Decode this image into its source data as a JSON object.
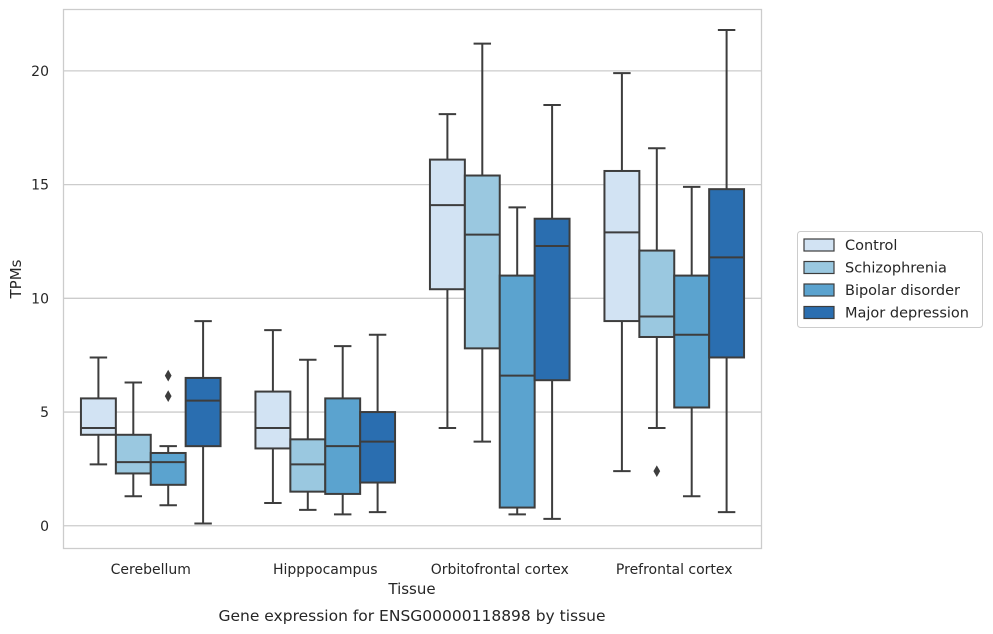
{
  "chart_data": {
    "type": "box",
    "caption": "Gene expression for ENSG00000118898 by tissue",
    "xlabel": "Tissue",
    "ylabel": "TPMs",
    "ylim": [
      -1,
      22.7
    ],
    "yticks": [
      0,
      5,
      10,
      15,
      20
    ],
    "grid": "horizontal",
    "legend_position": "right",
    "categories": [
      "Cerebellum",
      "Hipppocampus",
      "Orbitofrontal cortex",
      "Prefrontal cortex"
    ],
    "series": [
      {
        "name": "Control",
        "color": "#d2e3f3",
        "boxes": [
          {
            "whislo": 2.7,
            "q1": 4.0,
            "med": 4.3,
            "q3": 5.6,
            "whishi": 7.4,
            "fliers": []
          },
          {
            "whislo": 1.0,
            "q1": 3.4,
            "med": 4.3,
            "q3": 5.9,
            "whishi": 8.6,
            "fliers": []
          },
          {
            "whislo": 4.3,
            "q1": 10.4,
            "med": 14.1,
            "q3": 16.1,
            "whishi": 18.1,
            "fliers": []
          },
          {
            "whislo": 2.4,
            "q1": 9.0,
            "med": 12.9,
            "q3": 15.6,
            "whishi": 19.9,
            "fliers": []
          }
        ]
      },
      {
        "name": "Schizophrenia",
        "color": "#9ac8e0",
        "boxes": [
          {
            "whislo": 1.3,
            "q1": 2.3,
            "med": 2.8,
            "q3": 4.0,
            "whishi": 6.3,
            "fliers": []
          },
          {
            "whislo": 0.7,
            "q1": 1.5,
            "med": 2.7,
            "q3": 3.8,
            "whishi": 7.3,
            "fliers": []
          },
          {
            "whislo": 3.7,
            "q1": 7.8,
            "med": 12.8,
            "q3": 15.4,
            "whishi": 21.2,
            "fliers": []
          },
          {
            "whislo": 4.3,
            "q1": 8.3,
            "med": 9.2,
            "q3": 12.1,
            "whishi": 16.6,
            "fliers": [
              2.4
            ]
          }
        ]
      },
      {
        "name": "Bipolar disorder",
        "color": "#5ba3cf",
        "boxes": [
          {
            "whislo": 0.9,
            "q1": 1.8,
            "med": 2.8,
            "q3": 3.2,
            "whishi": 3.5,
            "fliers": [
              5.7,
              6.6
            ]
          },
          {
            "whislo": 0.5,
            "q1": 1.4,
            "med": 3.5,
            "q3": 5.6,
            "whishi": 7.9,
            "fliers": []
          },
          {
            "whislo": 0.5,
            "q1": 0.8,
            "med": 6.6,
            "q3": 11.0,
            "whishi": 14.0,
            "fliers": []
          },
          {
            "whislo": 1.3,
            "q1": 5.2,
            "med": 8.4,
            "q3": 11.0,
            "whishi": 14.9,
            "fliers": []
          }
        ]
      },
      {
        "name": "Major depression",
        "color": "#2a6eb0",
        "boxes": [
          {
            "whislo": 0.1,
            "q1": 3.5,
            "med": 5.5,
            "q3": 6.5,
            "whishi": 9.0,
            "fliers": []
          },
          {
            "whislo": 0.6,
            "q1": 1.9,
            "med": 3.7,
            "q3": 5.0,
            "whishi": 8.4,
            "fliers": []
          },
          {
            "whislo": 0.3,
            "q1": 6.4,
            "med": 12.3,
            "q3": 13.5,
            "whishi": 18.5,
            "fliers": []
          },
          {
            "whislo": 0.6,
            "q1": 7.4,
            "med": 11.8,
            "q3": 14.8,
            "whishi": 21.8,
            "fliers": []
          }
        ]
      }
    ]
  }
}
